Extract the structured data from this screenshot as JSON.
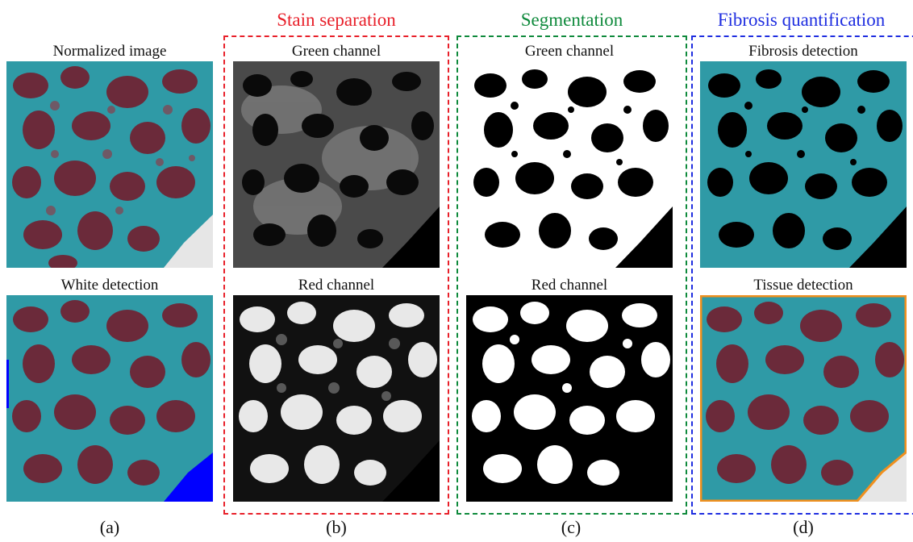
{
  "groups": {
    "stain_separation": {
      "title": "Stain separation",
      "color": "#e8202a"
    },
    "segmentation": {
      "title": "Segmentation",
      "color": "#0f8a3c"
    },
    "fibrosis_quantification": {
      "title": "Fibrosis quantification",
      "color": "#1f2ee0"
    }
  },
  "columns": {
    "a": {
      "top_caption": "Normalized image",
      "bottom_caption": "White detection",
      "label": "(a)"
    },
    "b": {
      "top_caption": "Green channel",
      "bottom_caption": "Red channel",
      "label": "(b)"
    },
    "c": {
      "top_caption": "Green channel",
      "bottom_caption": "Red channel",
      "label": "(c)"
    },
    "d": {
      "top_caption": "Fibrosis detection",
      "bottom_caption": "Tissue detection",
      "label": "(d)"
    }
  },
  "colors": {
    "tissue_teal": "#2f9aa6",
    "muscle_maroon": "#6b2a3a",
    "white_mask_blue": "#0000ff",
    "tissue_outline_orange": "#f0901e"
  }
}
